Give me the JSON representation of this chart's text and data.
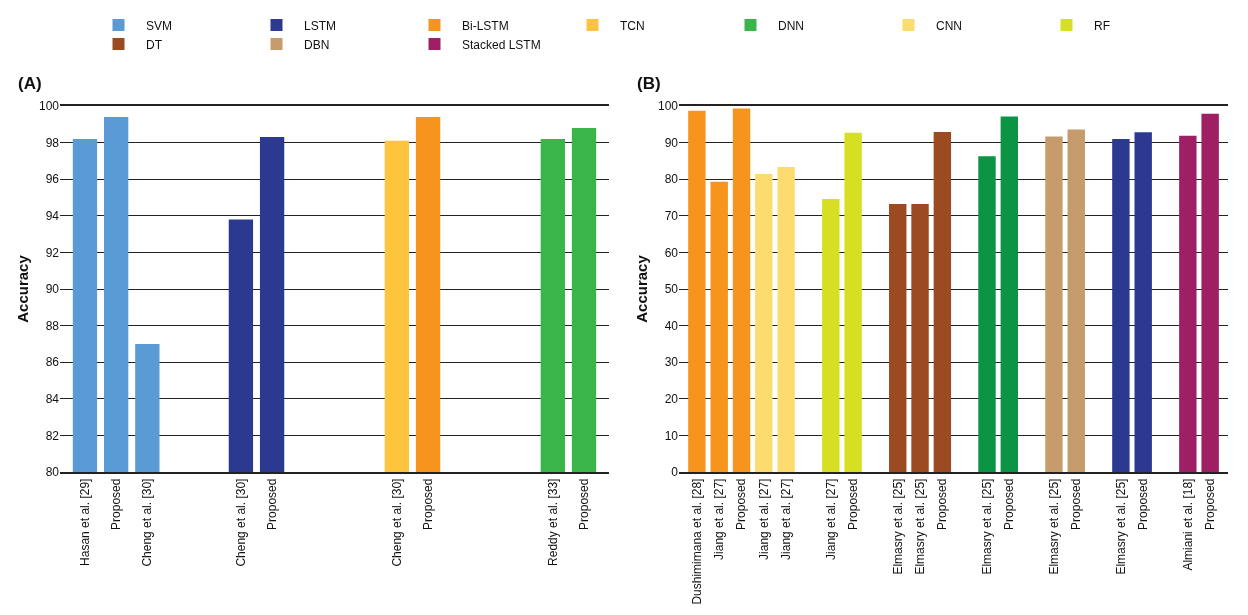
{
  "chart_data": [
    {
      "type": "bar",
      "title": "(A)",
      "ylabel": "Accuracy",
      "legend": "top",
      "grid": "y",
      "categories": [
        "Hasan et al. [29]",
        "Proposed",
        "Cheng et al. [30]",
        null,
        null,
        "Cheng et al. [30]",
        "Proposed",
        null,
        null,
        null,
        "Cheng et al. [30]",
        "Proposed",
        null,
        null,
        null,
        "Reddy et al. [33]",
        "Proposed"
      ],
      "ylim": [
        80,
        100
      ],
      "yticks": [
        80,
        82,
        84,
        86,
        88,
        90,
        92,
        94,
        96,
        98,
        100
      ],
      "series": [
        {
          "name": "SVM",
          "color": "#5b9bd5",
          "values": [
            98.2,
            99.4,
            87.0,
            null,
            null,
            null,
            null,
            null,
            null,
            null,
            null,
            null,
            null,
            null,
            null,
            null,
            null
          ]
        },
        {
          "name": "LSTM",
          "color": "#2b3990",
          "values": [
            null,
            null,
            null,
            null,
            null,
            93.8,
            98.3,
            null,
            null,
            null,
            null,
            null,
            null,
            null,
            null,
            null,
            null
          ]
        },
        {
          "name": "Bi-LSTM",
          "color": "#f7941d",
          "values": [
            null,
            null,
            null,
            null,
            null,
            null,
            null,
            null,
            null,
            null,
            null,
            99.4,
            null,
            null,
            null,
            null,
            null
          ]
        },
        {
          "name": "TCN",
          "color": "#fec43e",
          "values": [
            null,
            null,
            null,
            null,
            null,
            null,
            null,
            null,
            null,
            null,
            98.1,
            null,
            null,
            null,
            null,
            null,
            null
          ]
        },
        {
          "name": "DNN",
          "color": "#39b54a",
          "values": [
            null,
            null,
            null,
            null,
            null,
            null,
            null,
            null,
            null,
            null,
            null,
            null,
            null,
            null,
            null,
            98.2,
            98.8
          ]
        }
      ]
    },
    {
      "type": "bar",
      "title": "(B)",
      "ylabel": "Accuracy",
      "legend": "top",
      "grid": "y",
      "categories": [
        "Dushimimana et al. [28]",
        "Jiang et al. [27]",
        "Proposed",
        "Jiang et al. [27]",
        "Jiang et al. [27]",
        null,
        "Jiang et al. [27]",
        "Proposed",
        null,
        "Elmasry et al. [25]",
        "Elmasry et al. [25]",
        "Proposed",
        null,
        "Elmasry et al. [25]",
        "Proposed",
        null,
        "Elmasry et al. [25]",
        "Proposed",
        null,
        "Elmasry et al. [25]",
        "Proposed",
        null,
        "Almiani et al. [18]",
        "Proposed"
      ],
      "ylim": [
        0,
        100
      ],
      "yticks": [
        0,
        10,
        20,
        30,
        40,
        50,
        60,
        70,
        80,
        90,
        100
      ],
      "series": [
        {
          "name": "Bi-LSTM",
          "color": "#f7941d",
          "values": [
            98.7,
            79.3,
            99.3,
            null,
            null,
            null,
            null,
            null,
            null,
            null,
            null,
            null,
            null,
            null,
            null,
            null,
            null,
            null,
            null,
            null,
            null,
            null,
            null,
            null
          ]
        },
        {
          "name": "CNN",
          "color": "#fddc6f",
          "values": [
            null,
            null,
            null,
            81.4,
            83.3,
            null,
            null,
            null,
            null,
            null,
            null,
            null,
            null,
            null,
            null,
            null,
            null,
            null,
            null,
            null,
            null,
            null,
            null,
            null
          ]
        },
        {
          "name": "RF",
          "color": "#d7df23",
          "values": [
            null,
            null,
            null,
            null,
            null,
            null,
            74.6,
            92.7,
            null,
            null,
            null,
            null,
            null,
            null,
            null,
            null,
            null,
            null,
            null,
            null,
            null,
            null,
            null,
            null
          ]
        },
        {
          "name": "DT",
          "color": "#9b4a22",
          "values": [
            null,
            null,
            null,
            null,
            null,
            null,
            null,
            null,
            null,
            73.2,
            73.2,
            92.9,
            null,
            null,
            null,
            null,
            null,
            null,
            null,
            null,
            null,
            null,
            null,
            null
          ]
        },
        {
          "color": "#0b9444",
          "values": [
            null,
            null,
            null,
            null,
            null,
            null,
            null,
            null,
            null,
            null,
            null,
            null,
            null,
            86.3,
            97.1,
            null,
            null,
            null,
            null,
            null,
            null,
            null,
            null,
            null
          ]
        },
        {
          "name": "DBN",
          "color": "#c69c6d",
          "values": [
            null,
            null,
            null,
            null,
            null,
            null,
            null,
            null,
            null,
            null,
            null,
            null,
            null,
            null,
            null,
            null,
            91.7,
            93.6,
            null,
            null,
            null,
            null,
            null,
            null
          ]
        },
        {
          "name": "LSTM",
          "color": "#2b3990",
          "values": [
            null,
            null,
            null,
            null,
            null,
            null,
            null,
            null,
            null,
            null,
            null,
            null,
            null,
            null,
            null,
            null,
            null,
            null,
            null,
            91.0,
            92.8,
            null,
            null,
            null
          ]
        },
        {
          "name": "Stacked LSTM",
          "color": "#9e1f63",
          "values": [
            null,
            null,
            null,
            null,
            null,
            null,
            null,
            null,
            null,
            null,
            null,
            null,
            null,
            null,
            null,
            null,
            null,
            null,
            null,
            null,
            null,
            null,
            91.9,
            97.9
          ]
        }
      ]
    }
  ]
}
